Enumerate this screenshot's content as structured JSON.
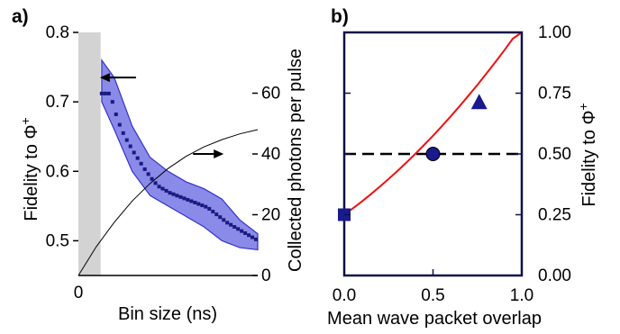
{
  "chart_data": [
    {
      "type": "scatter",
      "panel_label": "a)",
      "xlabel": "Bin size (ns)",
      "ylabel": "Fidelity to Φ",
      "ylabel_superscript": "+",
      "y2label": "Collected photons per pulse",
      "xlim": [
        0,
        5
      ],
      "ylim": [
        0.45,
        0.8
      ],
      "y2lim": [
        0,
        80
      ],
      "x_ticks": [
        {
          "value": 0,
          "label": "0"
        }
      ],
      "y_ticks": [
        {
          "value": 0.5,
          "label": "0.5"
        },
        {
          "value": 0.6,
          "label": "0.6"
        },
        {
          "value": 0.7,
          "label": "0.7"
        },
        {
          "value": 0.8,
          "label": "0.8"
        }
      ],
      "y2_ticks": [
        {
          "value": 0,
          "label": "0"
        },
        {
          "value": 20,
          "label": "20"
        },
        {
          "value": 40,
          "label": "40"
        },
        {
          "value": 60,
          "label": "60"
        }
      ],
      "excluded_region": [
        0,
        0.62
      ],
      "fidelity_x": [
        0.65,
        0.75,
        0.85,
        0.95,
        1.05,
        1.15,
        1.25,
        1.35,
        1.45,
        1.55,
        1.65,
        1.75,
        1.85,
        1.95,
        2.05,
        2.15,
        2.25,
        2.35,
        2.45,
        2.55,
        2.65,
        2.75,
        2.85,
        2.95,
        3.05,
        3.15,
        3.25,
        3.35,
        3.45,
        3.55,
        3.65,
        3.75,
        3.85,
        3.95,
        4.05,
        4.15,
        4.25,
        4.35,
        4.45,
        4.55,
        4.65,
        4.75,
        4.85,
        4.95
      ],
      "fidelity_y": [
        0.712,
        0.712,
        0.712,
        0.7,
        0.682,
        0.667,
        0.655,
        0.645,
        0.636,
        0.627,
        0.619,
        0.611,
        0.603,
        0.596,
        0.589,
        0.583,
        0.578,
        0.575,
        0.572,
        0.569,
        0.567,
        0.565,
        0.563,
        0.561,
        0.559,
        0.557,
        0.555,
        0.553,
        0.551,
        0.549,
        0.546,
        0.542,
        0.538,
        0.534,
        0.53,
        0.526,
        0.523,
        0.52,
        0.517,
        0.514,
        0.511,
        0.508,
        0.505,
        0.502
      ],
      "band_x": [
        0.65,
        1.0,
        1.5,
        2.0,
        2.5,
        3.0,
        3.5,
        4.0,
        4.5,
        5.0
      ],
      "band_upper": [
        0.76,
        0.735,
        0.665,
        0.62,
        0.6,
        0.585,
        0.575,
        0.56,
        0.53,
        0.51
      ],
      "band_lower": [
        0.7,
        0.66,
        0.6,
        0.565,
        0.55,
        0.535,
        0.52,
        0.5,
        0.49,
        0.487
      ],
      "photons_x": [
        0,
        0.5,
        1,
        1.5,
        2,
        2.5,
        3,
        3.5,
        4,
        4.5,
        5
      ],
      "photons_y": [
        0,
        9.5,
        17.5,
        24.5,
        30.3,
        35.2,
        39.2,
        42.3,
        44.7,
        46.6,
        48
      ],
      "arrow_left_at": {
        "x": 0.6,
        "y": 0.735
      },
      "arrow_right_at": {
        "x": 4.05,
        "y2": 40
      },
      "colors": {
        "band": "#8a8ae8",
        "band_edge": "#3333cc",
        "points": "#1a1a80",
        "shade": "#d3d3d3",
        "curve": "#000000"
      }
    },
    {
      "type": "line",
      "panel_label": "b)",
      "xlabel": "Mean wave packet overlap",
      "ylabel": "Fidelity to Φ",
      "ylabel_superscript": "+",
      "xlim": [
        0,
        1
      ],
      "ylim": [
        0,
        1
      ],
      "x_ticks": [
        {
          "value": 0,
          "label": "0.0"
        },
        {
          "value": 0.5,
          "label": "0.5"
        },
        {
          "value": 1,
          "label": "1.0"
        }
      ],
      "y_ticks": [
        {
          "value": 0,
          "label": "0.00"
        },
        {
          "value": 0.25,
          "label": "0.25"
        },
        {
          "value": 0.5,
          "label": "0.50"
        },
        {
          "value": 0.75,
          "label": "0.75"
        },
        {
          "value": 1,
          "label": "1.00"
        }
      ],
      "curve_x": [
        0,
        0.05,
        0.1,
        0.15,
        0.2,
        0.25,
        0.3,
        0.35,
        0.4,
        0.45,
        0.5,
        0.55,
        0.6,
        0.65,
        0.7,
        0.75,
        0.8,
        0.85,
        0.9,
        0.95,
        1
      ],
      "curve_y": [
        0.25,
        0.2769,
        0.305,
        0.3344,
        0.365,
        0.3969,
        0.43,
        0.4644,
        0.5,
        0.5369,
        0.575,
        0.6144,
        0.655,
        0.6969,
        0.74,
        0.7844,
        0.83,
        0.8769,
        0.925,
        0.9744,
        1.0
      ],
      "dashed_reference_y": 0.5,
      "markers": [
        {
          "shape": "square",
          "x": 0,
          "y": 0.25
        },
        {
          "shape": "circle",
          "x": 0.5,
          "y": 0.5
        },
        {
          "shape": "triangle",
          "x": 0.76,
          "y": 0.71
        }
      ],
      "colors": {
        "curve": "#ee1111",
        "markers": "#1a1a8c",
        "dashed": "#000000",
        "frame": "#10104a"
      }
    }
  ]
}
